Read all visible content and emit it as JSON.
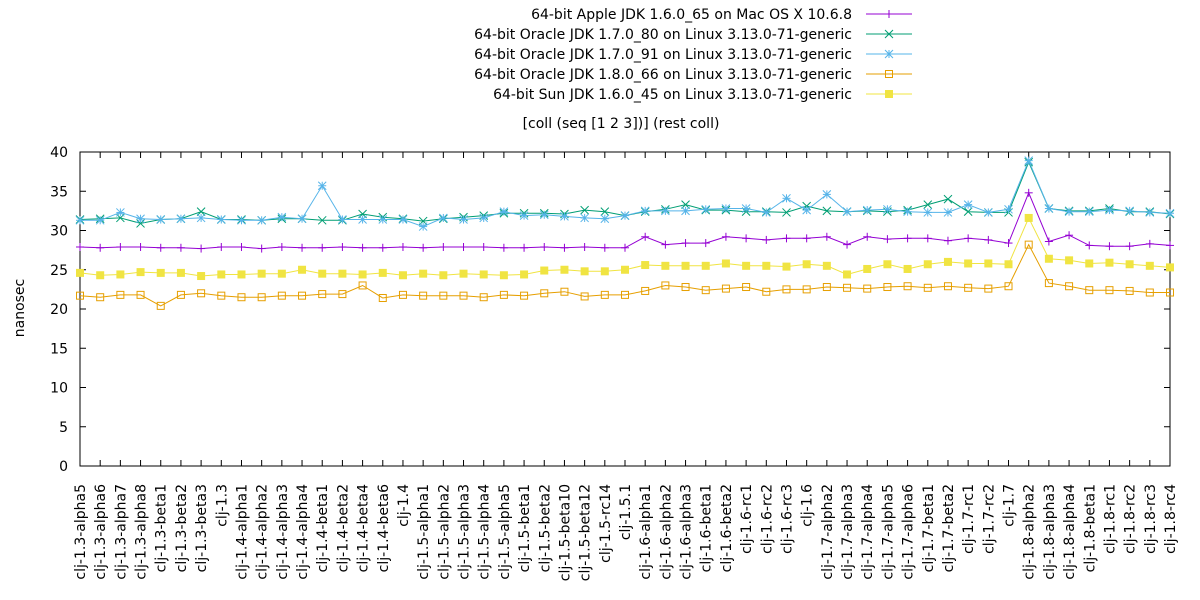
{
  "chart_data": {
    "type": "line",
    "title": "[coll (seq [1 2 3])] (rest coll)",
    "xlabel": "",
    "ylabel": "nanosec",
    "ylim": [
      0,
      40
    ],
    "yticks": [
      0,
      5,
      10,
      15,
      20,
      25,
      30,
      35,
      40
    ],
    "grid": false,
    "legend_position": "top-right",
    "categories": [
      "clj-1.3-alpha5",
      "clj-1.3-alpha6",
      "clj-1.3-alpha7",
      "clj-1.3-alpha8",
      "clj-1.3-beta1",
      "clj-1.3-beta2",
      "clj-1.3-beta3",
      "clj-1.3",
      "clj-1.4-alpha1",
      "clj-1.4-alpha2",
      "clj-1.4-alpha3",
      "clj-1.4-alpha4",
      "clj-1.4-beta1",
      "clj-1.4-beta2",
      "clj-1.4-beta4",
      "clj-1.4-beta6",
      "clj-1.4",
      "clj-1.5-alpha1",
      "clj-1.5-alpha2",
      "clj-1.5-alpha3",
      "clj-1.5-alpha4",
      "clj-1.5-alpha5",
      "clj-1.5-beta1",
      "clj-1.5-beta2",
      "clj-1.5-beta10",
      "clj-1.5-beta12",
      "clj-1.5-rc14",
      "clj-1.5.1",
      "clj-1.6-alpha1",
      "clj-1.6-alpha2",
      "clj-1.6-alpha3",
      "clj-1.6-beta1",
      "clj-1.6-beta2",
      "clj-1.6-rc1",
      "clj-1.6-rc2",
      "clj-1.6-rc3",
      "clj-1.6",
      "clj-1.7-alpha2",
      "clj-1.7-alpha3",
      "clj-1.7-alpha4",
      "clj-1.7-alpha5",
      "clj-1.7-alpha6",
      "clj-1.7-beta1",
      "clj-1.7-beta2",
      "clj-1.7-rc1",
      "clj-1.7-rc2",
      "clj-1.7",
      "clj-1.8-alpha2",
      "clj-1.8-alpha3",
      "clj-1.8-alpha4",
      "clj-1.8-beta1",
      "clj-1.8-rc1",
      "clj-1.8-rc2",
      "clj-1.8-rc3",
      "clj-1.8-rc4"
    ],
    "series": [
      {
        "name": "64-bit Apple JDK 1.6.0_65 on Mac OS X 10.6.8",
        "color": "#9400d3",
        "marker": "plus",
        "values": [
          27.9,
          27.8,
          27.9,
          27.9,
          27.8,
          27.8,
          27.7,
          27.9,
          27.9,
          27.7,
          27.9,
          27.8,
          27.8,
          27.9,
          27.8,
          27.8,
          27.9,
          27.8,
          27.9,
          27.9,
          27.9,
          27.8,
          27.8,
          27.9,
          27.8,
          27.9,
          27.8,
          27.8,
          29.2,
          28.2,
          28.4,
          28.4,
          29.2,
          29.0,
          28.8,
          29.0,
          29.0,
          29.2,
          28.2,
          29.2,
          28.9,
          29.0,
          29.0,
          28.7,
          29.0,
          28.8,
          28.4,
          34.8,
          28.6,
          29.4,
          28.1,
          28.0,
          28.0,
          28.3,
          28.1
        ]
      },
      {
        "name": "64-bit Oracle JDK 1.7.0_80 on Linux 3.13.0-71-generic",
        "color": "#009e73",
        "marker": "x",
        "values": [
          31.4,
          31.5,
          31.6,
          30.9,
          31.4,
          31.5,
          32.4,
          31.4,
          31.4,
          31.3,
          31.5,
          31.5,
          31.3,
          31.3,
          32.1,
          31.7,
          31.5,
          31.2,
          31.5,
          31.7,
          31.9,
          32.2,
          32.2,
          32.2,
          32.1,
          32.6,
          32.4,
          31.9,
          32.4,
          32.7,
          33.3,
          32.6,
          32.6,
          32.4,
          32.4,
          32.3,
          33.1,
          32.5,
          32.4,
          32.5,
          32.4,
          32.6,
          33.3,
          34.0,
          32.4,
          32.3,
          32.3,
          38.7,
          32.8,
          32.5,
          32.5,
          32.8,
          32.4,
          32.4,
          32.1
        ]
      },
      {
        "name": "64-bit Oracle JDK 1.7.0_91 on Linux 3.13.0-71-generic",
        "color": "#56b4e9",
        "marker": "star",
        "values": [
          31.3,
          31.3,
          32.3,
          31.5,
          31.4,
          31.5,
          31.6,
          31.4,
          31.3,
          31.3,
          31.7,
          31.5,
          35.7,
          31.4,
          31.4,
          31.4,
          31.4,
          30.5,
          31.6,
          31.4,
          31.6,
          32.4,
          31.9,
          32.0,
          31.8,
          31.6,
          31.5,
          31.9,
          32.5,
          32.5,
          32.5,
          32.7,
          32.8,
          32.8,
          32.3,
          34.1,
          32.6,
          34.6,
          32.4,
          32.6,
          32.7,
          32.4,
          32.3,
          32.3,
          33.3,
          32.3,
          32.7,
          38.9,
          32.8,
          32.4,
          32.4,
          32.6,
          32.5,
          32.3,
          32.2
        ]
      },
      {
        "name": "64-bit Oracle JDK 1.8.0_66 on Linux 3.13.0-71-generic",
        "color": "#e69f00",
        "marker": "square",
        "values": [
          21.7,
          21.5,
          21.8,
          21.8,
          20.4,
          21.8,
          22.0,
          21.7,
          21.5,
          21.5,
          21.7,
          21.7,
          21.9,
          21.9,
          23.0,
          21.4,
          21.8,
          21.7,
          21.7,
          21.7,
          21.5,
          21.8,
          21.7,
          22.0,
          22.2,
          21.6,
          21.8,
          21.8,
          22.3,
          23.0,
          22.8,
          22.4,
          22.6,
          22.8,
          22.2,
          22.5,
          22.5,
          22.8,
          22.7,
          22.6,
          22.8,
          22.9,
          22.7,
          22.9,
          22.7,
          22.6,
          22.9,
          28.2,
          23.3,
          22.9,
          22.4,
          22.4,
          22.3,
          22.1,
          22.1
        ]
      },
      {
        "name": "64-bit Sun JDK 1.6.0_45 on Linux 3.13.0-71-generic",
        "color": "#f0e442",
        "marker": "filled-square",
        "values": [
          24.6,
          24.3,
          24.4,
          24.7,
          24.6,
          24.6,
          24.2,
          24.4,
          24.4,
          24.5,
          24.5,
          25.0,
          24.5,
          24.5,
          24.4,
          24.6,
          24.3,
          24.5,
          24.3,
          24.5,
          24.4,
          24.3,
          24.4,
          24.9,
          25.0,
          24.8,
          24.8,
          25.0,
          25.6,
          25.5,
          25.5,
          25.5,
          25.8,
          25.5,
          25.5,
          25.4,
          25.7,
          25.5,
          24.4,
          25.1,
          25.7,
          25.1,
          25.7,
          26.0,
          25.8,
          25.8,
          25.7,
          31.6,
          26.4,
          26.2,
          25.8,
          25.9,
          25.7,
          25.5,
          25.3
        ]
      }
    ]
  }
}
